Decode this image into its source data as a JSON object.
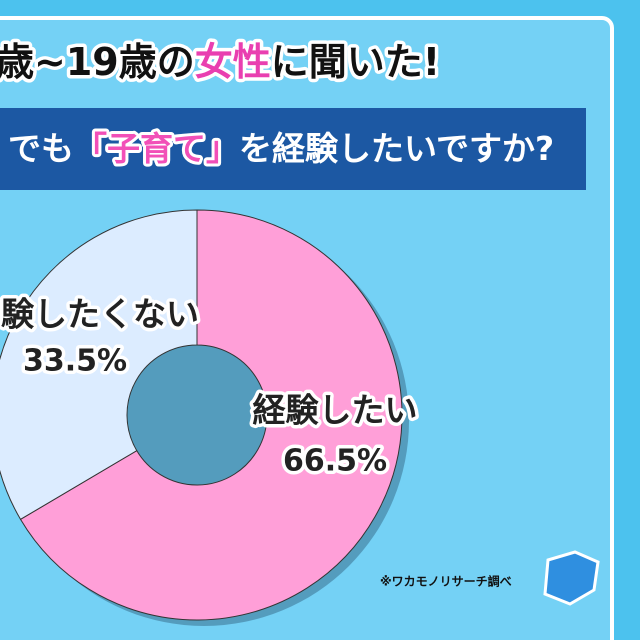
{
  "chart_data": {
    "type": "pie",
    "title": [
      "歳~19歳の",
      "女性",
      "に聞いた!"
    ],
    "subtitle": [
      "でも",
      "「子育て」",
      "を経験したいですか?"
    ],
    "categories": [
      "経験したい",
      "験したくない"
    ],
    "values": [
      66.5,
      33.5
    ],
    "value_labels": [
      "66.5%",
      "33.5%"
    ],
    "colors": [
      "#ff9fd8",
      "#dcecff"
    ],
    "source": "※ワカモノリサーチ調べ"
  }
}
